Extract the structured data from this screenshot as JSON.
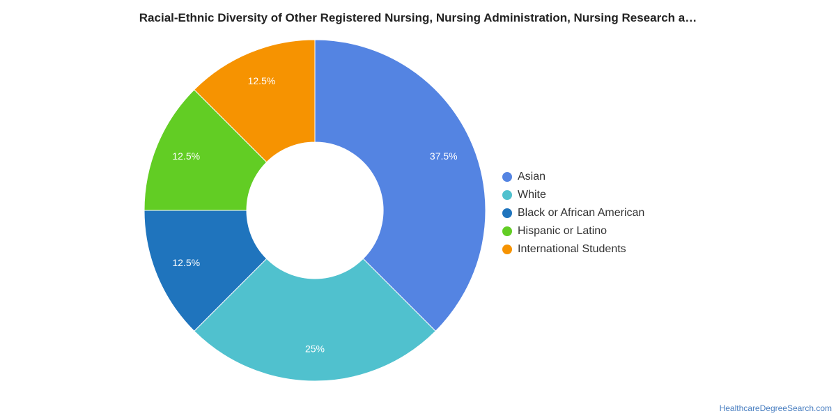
{
  "chart_data": {
    "type": "pie",
    "title": "Racial-Ethnic Diversity of Other Registered Nursing, Nursing Administration, Nursing Research a…",
    "donut": true,
    "legend_position": "right",
    "slices": [
      {
        "name": "Asian",
        "value": 37.5,
        "label": "37.5%",
        "color": "#5484e2"
      },
      {
        "name": "White",
        "value": 25,
        "label": "25%",
        "color": "#50c1ce"
      },
      {
        "name": "Black or African American",
        "value": 12.5,
        "label": "12.5%",
        "color": "#1f74bd"
      },
      {
        "name": "Hispanic or Latino",
        "value": 12.5,
        "label": "12.5%",
        "color": "#62cd24"
      },
      {
        "name": "International Students",
        "value": 12.5,
        "label": "12.5%",
        "color": "#f69301"
      }
    ]
  },
  "footer": {
    "source": "HealthcareDegreeSearch.com"
  }
}
